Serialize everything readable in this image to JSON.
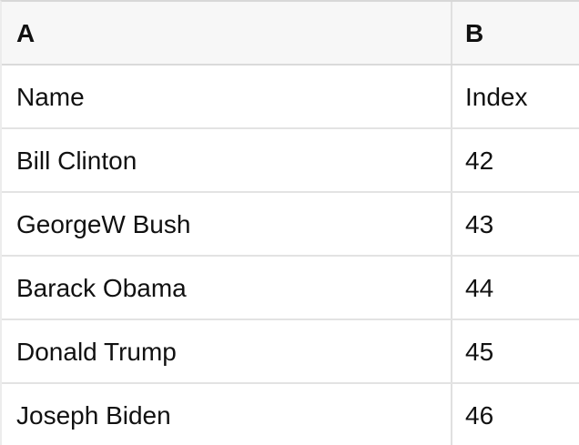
{
  "colors": {
    "header_background": "#f7f7f7",
    "top_border": "#d8d8d8",
    "header_border": "#dadada",
    "row_border": "#e3e3e3",
    "column_border": "#e0e0e0",
    "text": "#111111"
  },
  "table": {
    "column_headers": [
      "A",
      "B"
    ],
    "rows": [
      [
        "Name",
        "Index"
      ],
      [
        "Bill Clinton",
        "42"
      ],
      [
        "GeorgeW Bush",
        "43"
      ],
      [
        "Barack Obama",
        "44"
      ],
      [
        "Donald Trump",
        "45"
      ],
      [
        "Joseph Biden",
        "46"
      ]
    ]
  }
}
